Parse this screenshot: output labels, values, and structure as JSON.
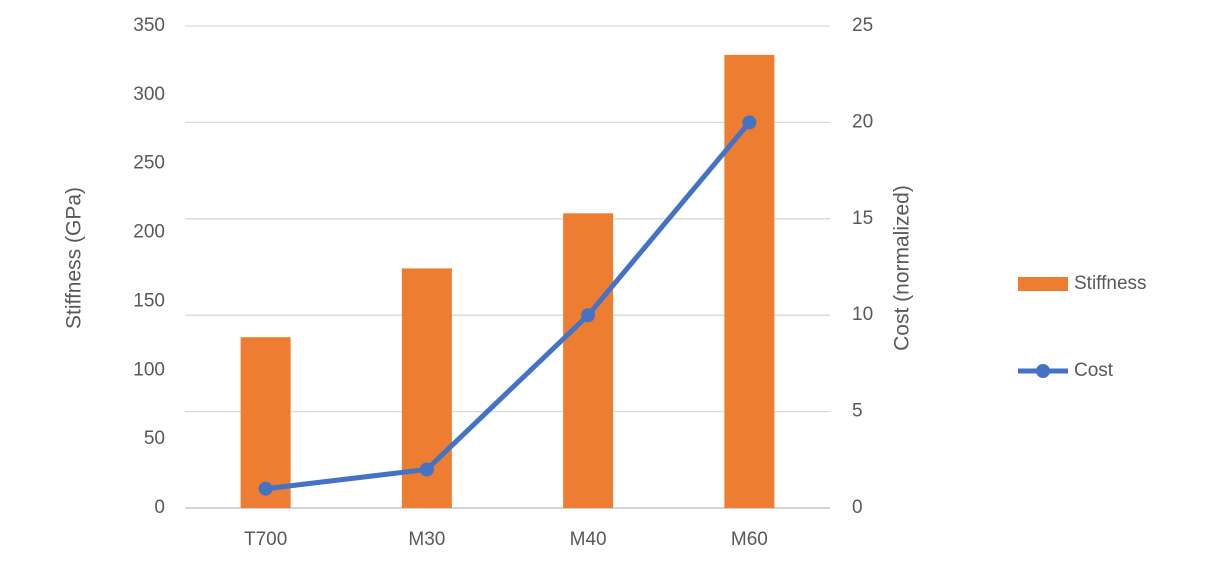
{
  "chart_data": {
    "type": "bar",
    "categories": [
      "T700",
      "M30",
      "M40",
      "M60"
    ],
    "y_label": "Stiffness (GPa)",
    "y2_label": "Cost (normalized)",
    "series": [
      {
        "name": "Stiffness",
        "type": "bar",
        "color": "#ed7d31",
        "values": [
          124,
          174,
          214,
          329
        ]
      },
      {
        "name": "Cost",
        "type": "line",
        "axis": "y2",
        "color": "#4472c4",
        "values": [
          1,
          2,
          10,
          20
        ]
      }
    ],
    "ylim": [
      0,
      350
    ],
    "yticks": [
      0,
      50,
      100,
      150,
      200,
      250,
      300,
      350
    ],
    "y2lim": [
      0,
      25
    ],
    "y2ticks": [
      0,
      5,
      10,
      15,
      20,
      25
    ],
    "grid": "y2",
    "legend": "right"
  }
}
